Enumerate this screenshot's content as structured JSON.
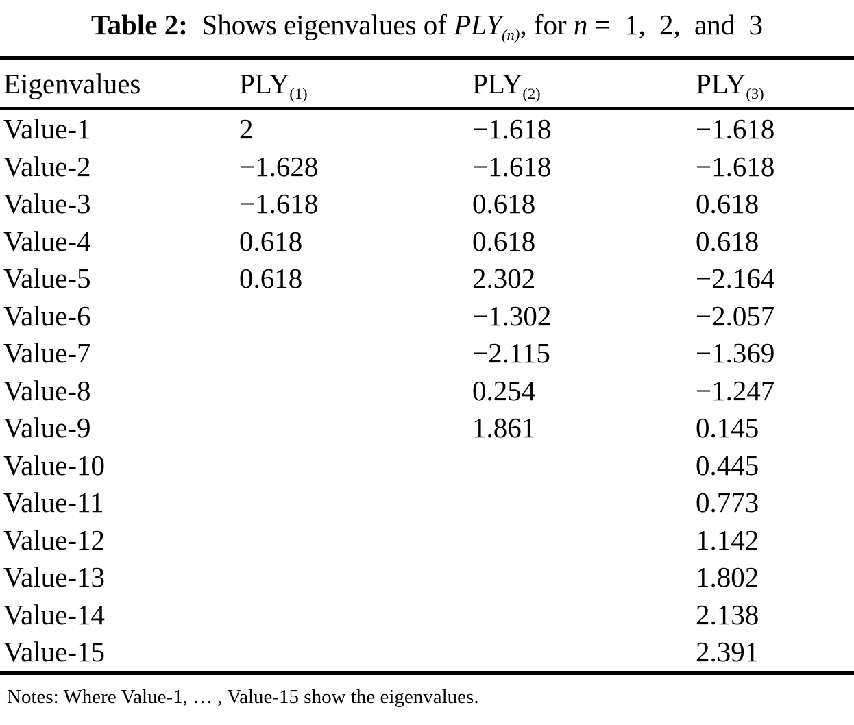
{
  "title": {
    "label": "Table 2:",
    "text_before_math": "Shows eigenvalues of",
    "math_base": "PLY",
    "math_sub": "(n)",
    "text_mid": ", for",
    "math_var": "n",
    "text_after": "= 1, 2, and 3"
  },
  "table": {
    "columns": [
      {
        "base": "Eigenvalues",
        "sub": ""
      },
      {
        "base": "PLY",
        "sub": "(1)"
      },
      {
        "base": "PLY",
        "sub": "(2)"
      },
      {
        "base": "PLY",
        "sub": "(3)"
      }
    ],
    "rows": [
      {
        "label": "Value-1",
        "values": [
          "2",
          "−1.618",
          "−1.618"
        ]
      },
      {
        "label": "Value-2",
        "values": [
          "−1.628",
          "−1.618",
          "−1.618"
        ]
      },
      {
        "label": "Value-3",
        "values": [
          "−1.618",
          "0.618",
          "0.618"
        ]
      },
      {
        "label": "Value-4",
        "values": [
          "0.618",
          "0.618",
          "0.618"
        ]
      },
      {
        "label": "Value-5",
        "values": [
          "0.618",
          "2.302",
          "−2.164"
        ]
      },
      {
        "label": "Value-6",
        "values": [
          "",
          "−1.302",
          "−2.057"
        ]
      },
      {
        "label": "Value-7",
        "values": [
          "",
          "−2.115",
          "−1.369"
        ]
      },
      {
        "label": "Value-8",
        "values": [
          "",
          "0.254",
          "−1.247"
        ]
      },
      {
        "label": "Value-9",
        "values": [
          "",
          "1.861",
          "0.145"
        ]
      },
      {
        "label": "Value-10",
        "values": [
          "",
          "",
          "0.445"
        ]
      },
      {
        "label": "Value-11",
        "values": [
          "",
          "",
          "0.773"
        ]
      },
      {
        "label": "Value-12",
        "values": [
          "",
          "",
          "1.142"
        ]
      },
      {
        "label": "Value-13",
        "values": [
          "",
          "",
          "1.802"
        ]
      },
      {
        "label": "Value-14",
        "values": [
          "",
          "",
          "2.138"
        ]
      },
      {
        "label": "Value-15",
        "values": [
          "",
          "",
          "2.391"
        ]
      }
    ]
  },
  "notes": "Notes: Where Value-1, … , Value-15 show the eigenvalues.",
  "colors": {
    "text": "#000000",
    "background": "#ffffff",
    "rule": "#000000"
  }
}
